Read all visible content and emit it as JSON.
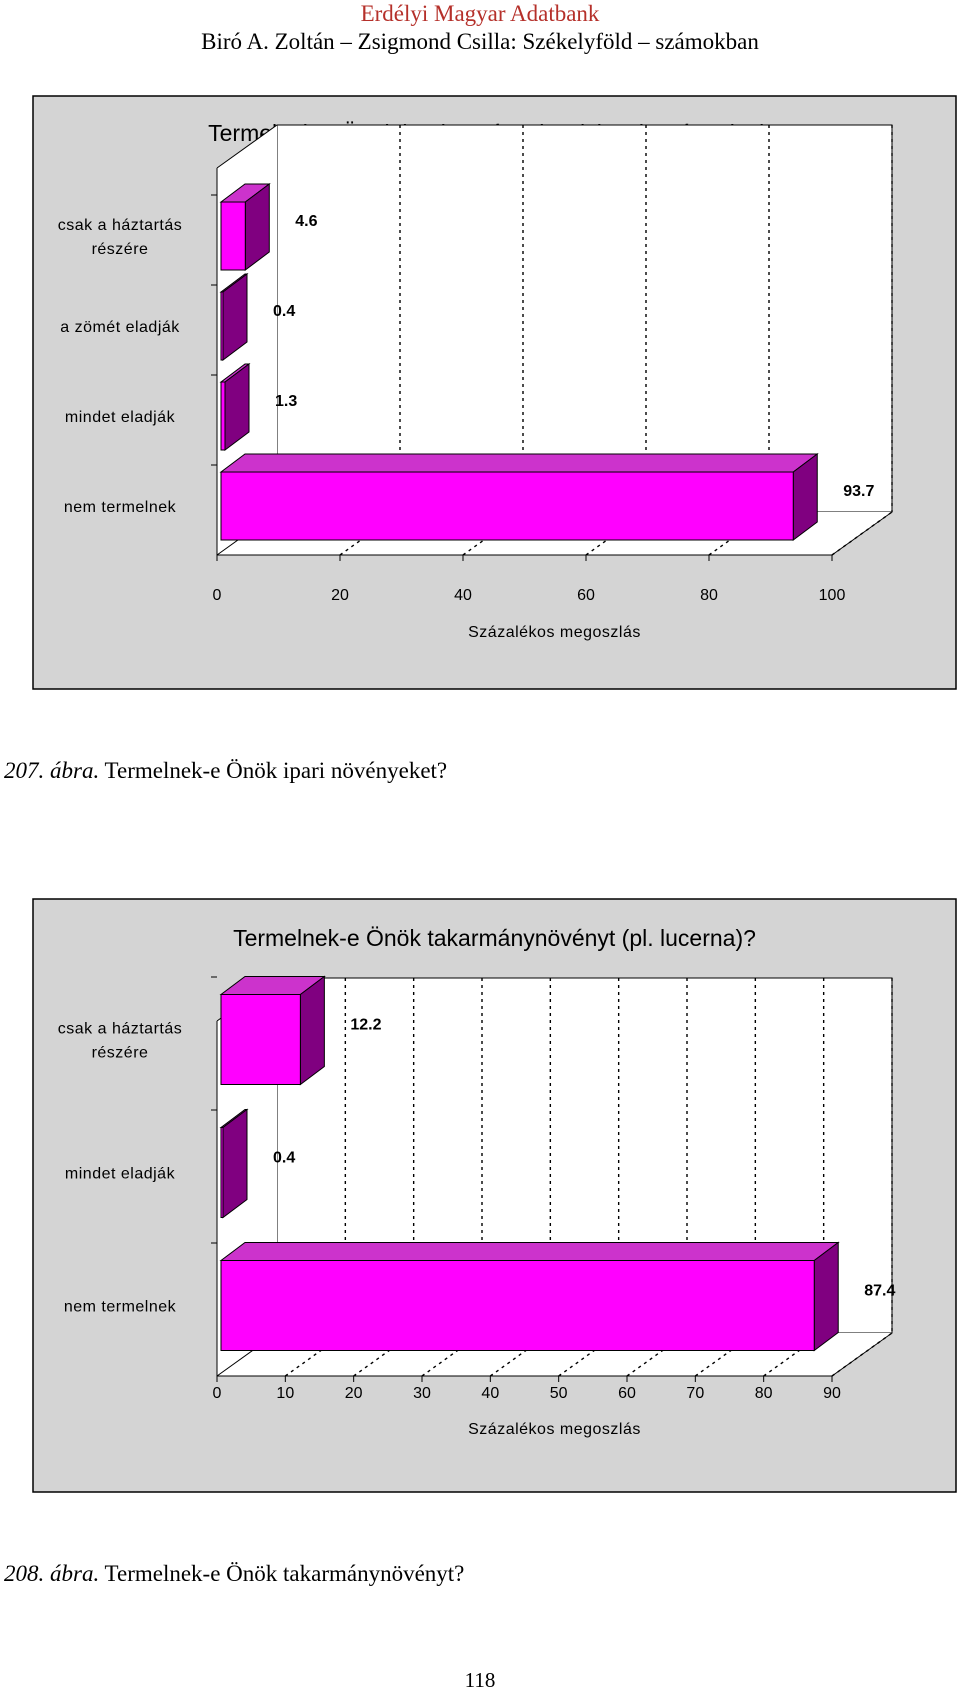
{
  "header": {
    "line1": "Erdélyi Magyar Adatbank",
    "line2": "Biró A. Zoltán – Zsigmond Csilla: Székelyföld – számokban"
  },
  "figures": [
    {
      "caption_number": "207. ábra.",
      "caption_text": " Termelnek-e Önök ipari növényeket?"
    },
    {
      "caption_number": "208. ábra.",
      "caption_text": " Termelnek-e Önök takarmánynövényt?"
    }
  ],
  "page_number": "118",
  "colors": {
    "bar_front": "#ff00ff",
    "bar_top": "#cc33cc",
    "bar_side": "#800080",
    "panel": "#d4d4d4",
    "plot": "#ffffff"
  },
  "chart_data": [
    {
      "type": "bar",
      "orientation": "horizontal",
      "title": "Termelnek-e Önök ipari növényeket (pl. cukorrépa, len)?",
      "xlabel": "Százalékos megoszlás",
      "ylabel": "",
      "categories": [
        "csak a háztartás|részére",
        "a zömét eladják",
        "mindet eladják",
        "nem termelnek"
      ],
      "values": [
        4.6,
        0.4,
        1.3,
        93.7
      ],
      "value_labels": [
        "4.6",
        "0.4",
        "1.3",
        "93.7"
      ],
      "xlim": [
        0,
        100
      ],
      "ticks": [
        0,
        20,
        40,
        60,
        80,
        100
      ],
      "tick_labels": [
        "0",
        "20",
        "40",
        "60",
        "80",
        "100"
      ],
      "grid": true
    },
    {
      "type": "bar",
      "orientation": "horizontal",
      "title": "Termelnek-e Önök takarmánynövényt (pl. lucerna)?",
      "xlabel": "Százalékos megoszlás",
      "ylabel": "",
      "categories": [
        "csak a háztartás|részére",
        "mindet eladják",
        "nem termelnek"
      ],
      "values": [
        12.2,
        0.4,
        87.4
      ],
      "value_labels": [
        "12.2",
        "0.4",
        "87.4"
      ],
      "xlim": [
        0,
        90
      ],
      "ticks": [
        0,
        10,
        20,
        30,
        40,
        50,
        60,
        70,
        80,
        90
      ],
      "tick_labels": [
        "0",
        "10",
        "20",
        "30",
        "40",
        "50",
        "60",
        "70",
        "80",
        "90"
      ],
      "grid": true
    }
  ]
}
